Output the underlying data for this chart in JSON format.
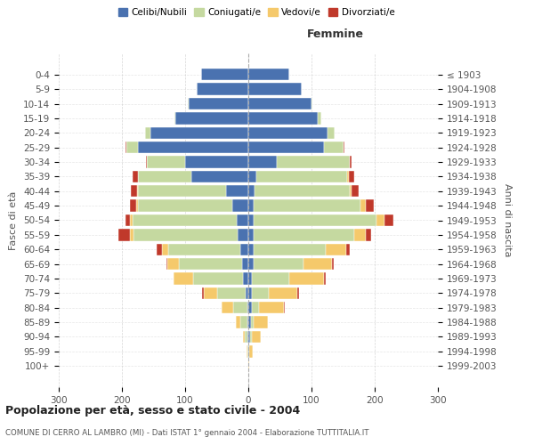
{
  "age_groups": [
    "0-4",
    "5-9",
    "10-14",
    "15-19",
    "20-24",
    "25-29",
    "30-34",
    "35-39",
    "40-44",
    "45-49",
    "50-54",
    "55-59",
    "60-64",
    "65-69",
    "70-74",
    "75-79",
    "80-84",
    "85-89",
    "90-94",
    "95-99",
    "100+"
  ],
  "birth_years": [
    "1999-2003",
    "1994-1998",
    "1989-1993",
    "1984-1988",
    "1979-1983",
    "1974-1978",
    "1969-1973",
    "1964-1968",
    "1959-1963",
    "1954-1958",
    "1949-1953",
    "1944-1948",
    "1939-1943",
    "1934-1938",
    "1929-1933",
    "1924-1928",
    "1919-1923",
    "1914-1918",
    "1909-1913",
    "1904-1908",
    "≤ 1903"
  ],
  "male": {
    "celibe": [
      75,
      82,
      95,
      115,
      155,
      175,
      100,
      90,
      35,
      25,
      18,
      17,
      12,
      10,
      8,
      4,
      2,
      2,
      1,
      0,
      0
    ],
    "coniugato": [
      0,
      0,
      1,
      2,
      8,
      18,
      60,
      85,
      140,
      150,
      165,
      165,
      115,
      100,
      80,
      45,
      22,
      10,
      5,
      2,
      0
    ],
    "vedovo": [
      0,
      0,
      0,
      0,
      0,
      0,
      0,
      0,
      1,
      2,
      4,
      5,
      10,
      18,
      30,
      22,
      18,
      8,
      3,
      1,
      0
    ],
    "divorziato": [
      0,
      0,
      0,
      0,
      0,
      1,
      2,
      8,
      10,
      10,
      8,
      18,
      8,
      2,
      1,
      2,
      0,
      0,
      0,
      0,
      0
    ]
  },
  "female": {
    "nubile": [
      65,
      85,
      100,
      110,
      125,
      120,
      45,
      12,
      10,
      8,
      8,
      8,
      8,
      8,
      5,
      5,
      5,
      4,
      3,
      2,
      0
    ],
    "coniugata": [
      0,
      0,
      2,
      5,
      12,
      30,
      115,
      145,
      150,
      170,
      195,
      160,
      115,
      80,
      60,
      28,
      12,
      5,
      2,
      0,
      0
    ],
    "vedova": [
      0,
      0,
      0,
      0,
      0,
      0,
      1,
      2,
      4,
      8,
      12,
      18,
      32,
      45,
      55,
      45,
      40,
      22,
      15,
      5,
      1
    ],
    "divorziata": [
      0,
      0,
      0,
      0,
      0,
      2,
      3,
      8,
      10,
      12,
      15,
      8,
      5,
      2,
      2,
      2,
      1,
      0,
      0,
      0,
      0
    ]
  },
  "colors": {
    "celibe": "#4a72b0",
    "coniugato": "#c5d9a0",
    "vedovo": "#f5c96b",
    "divorziato": "#c0392b"
  },
  "xlim": 300,
  "title": "Popolazione per età, sesso e stato civile - 2004",
  "subtitle": "COMUNE DI CERRO AL LAMBRO (MI) - Dati ISTAT 1° gennaio 2004 - Elaborazione TUTTITALIA.IT",
  "ylabel_left": "Fasce di età",
  "ylabel_right": "Anni di nascita",
  "xlabel_femmine": "Femmine",
  "bg_color": "#ffffff",
  "grid_color": "#cccccc",
  "bar_edge_color": "#ffffff",
  "legend_labels": [
    "Celibi/Nubili",
    "Coniugati/e",
    "Vedovi/e",
    "Divorziati/e"
  ]
}
